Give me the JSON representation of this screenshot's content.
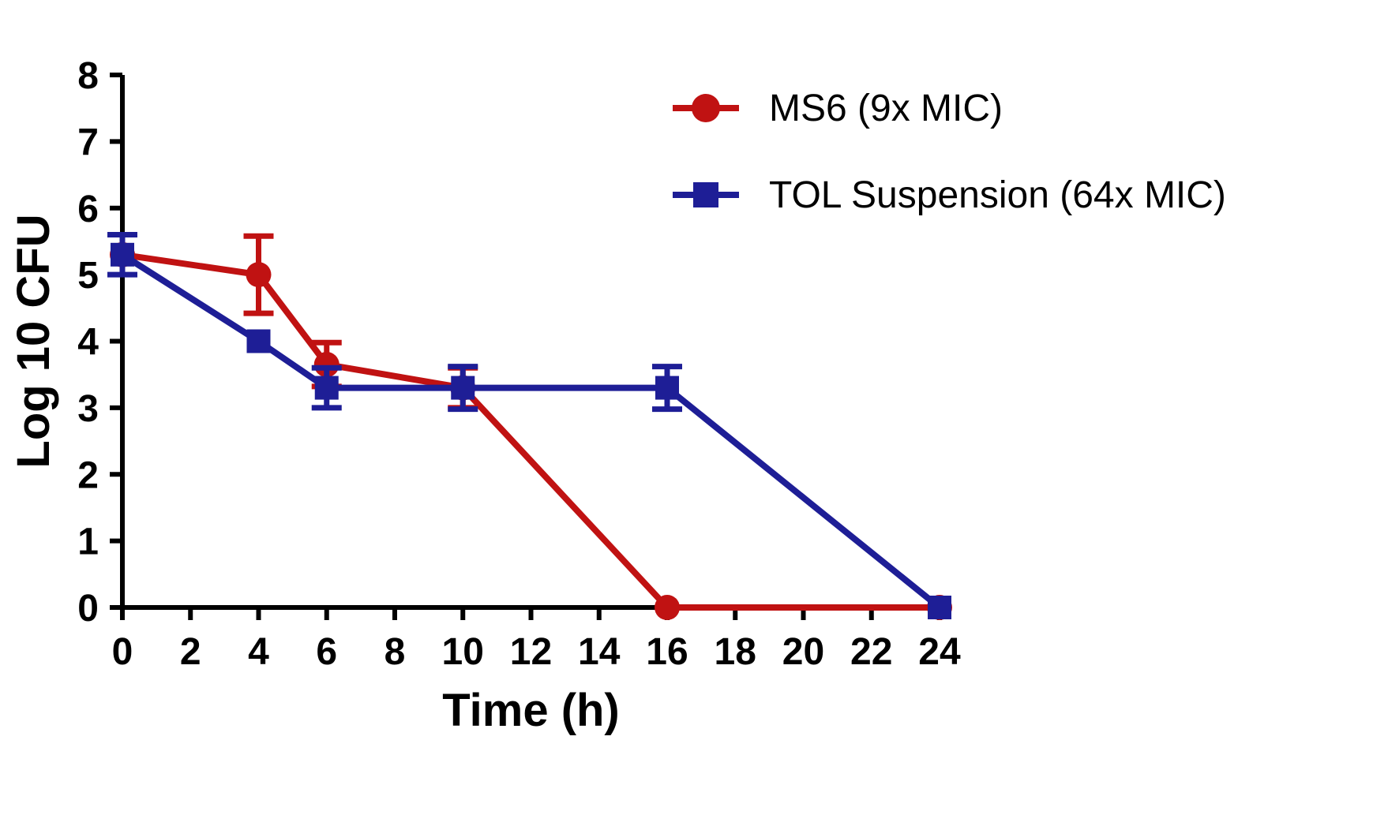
{
  "chart_data": {
    "type": "line",
    "title": "",
    "xlabel": "Time (h)",
    "ylabel": "Log 10 CFU",
    "xlim": [
      0,
      24
    ],
    "ylim": [
      0,
      8
    ],
    "xticks": [
      0,
      2,
      4,
      6,
      8,
      10,
      12,
      14,
      16,
      18,
      20,
      22,
      24
    ],
    "yticks": [
      0,
      1,
      2,
      3,
      4,
      5,
      6,
      7,
      8
    ],
    "grid": false,
    "legend_position": "top-right",
    "axis_color": "#000000",
    "series": [
      {
        "name": "MS6 (9x MIC)",
        "color": "#C01212",
        "marker": "circle",
        "x": [
          0,
          4,
          6,
          10,
          16,
          24
        ],
        "y": [
          5.3,
          5.0,
          3.65,
          3.3,
          0,
          0
        ],
        "yerr": [
          0,
          0.58,
          0.33,
          0.3,
          0,
          0
        ]
      },
      {
        "name": "TOL Suspension (64x MIC)",
        "color": "#1E1E96",
        "marker": "square",
        "x": [
          0,
          4,
          6,
          10,
          16,
          24
        ],
        "y": [
          5.3,
          4.0,
          3.3,
          3.3,
          3.3,
          0
        ],
        "yerr": [
          0.3,
          0,
          0.3,
          0.32,
          0.32,
          0
        ]
      }
    ]
  }
}
